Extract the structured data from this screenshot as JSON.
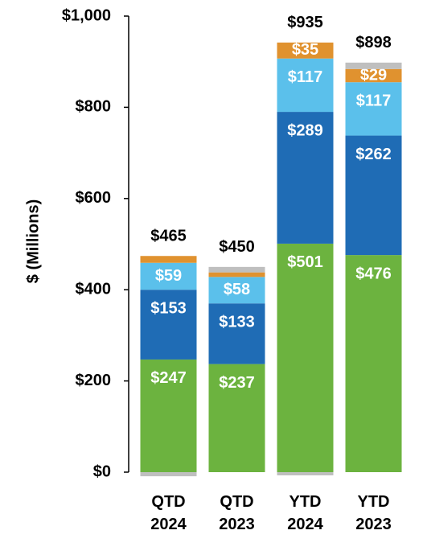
{
  "chart_data": {
    "type": "stacked_bar",
    "y_label": "$ (Millions)",
    "categories": [
      "QTD\n2024",
      "QTD\n2023",
      "YTD\n2024",
      "YTD\n2023"
    ],
    "ylim": [
      0,
      1000
    ],
    "yticks": [
      {
        "value": 0,
        "label": "$0"
      },
      {
        "value": 200,
        "label": "$200"
      },
      {
        "value": 400,
        "label": "$400"
      },
      {
        "value": 600,
        "label": "$600"
      },
      {
        "value": 800,
        "label": "$800"
      },
      {
        "value": 1000,
        "label": "$1,000"
      }
    ],
    "series": [
      {
        "color": "#6cb33f",
        "values": [
          247,
          237,
          501,
          476
        ],
        "value_labels": [
          "$247",
          "$237",
          "$501",
          "$476"
        ]
      },
      {
        "color": "#1f6cb5",
        "values": [
          153,
          133,
          289,
          262
        ],
        "value_labels": [
          "$153",
          "$133",
          "$289",
          "$262"
        ]
      },
      {
        "color": "#5bc0eb",
        "values": [
          59,
          58,
          117,
          117
        ],
        "value_labels": [
          "$59",
          "$58",
          "$117",
          "$117"
        ]
      },
      {
        "color": "#e0922f",
        "values": [
          15,
          10,
          35,
          29
        ],
        "value_labels": [
          null,
          null,
          "$35",
          "$29"
        ]
      },
      {
        "color": "#bfbfbf",
        "values": [
          -9,
          12,
          -7,
          14
        ]
      }
    ],
    "totals": [
      465,
      450,
      935,
      898
    ],
    "total_labels": [
      "$465",
      "$450",
      "$935",
      "$898"
    ]
  }
}
